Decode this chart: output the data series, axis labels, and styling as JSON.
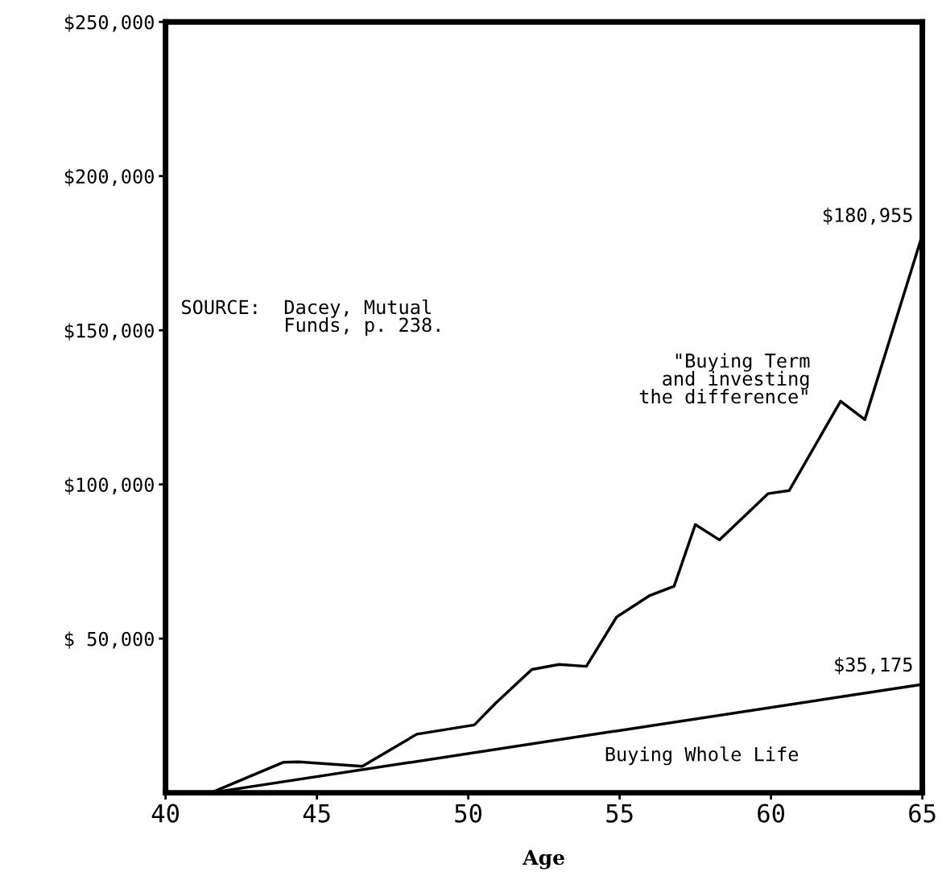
{
  "chart_data": {
    "type": "line",
    "xlabel": "Age",
    "xlim": [
      40,
      65
    ],
    "ylim": [
      0,
      250000
    ],
    "xticks": [
      40,
      45,
      50,
      55,
      60,
      65
    ],
    "yticks": [
      {
        "value": 50000,
        "label": "$ 50,000"
      },
      {
        "value": 100000,
        "label": "$100,000"
      },
      {
        "value": 150000,
        "label": "$150,000"
      },
      {
        "value": 200000,
        "label": "$200,000"
      },
      {
        "value": 250000,
        "label": "$250,000"
      }
    ],
    "grid": false,
    "legend": false,
    "marker": "none",
    "line_style": "solid",
    "series": [
      {
        "name": "\"Buying Term\nand investing\nthe difference\"",
        "color": "#000000",
        "x": [
          40,
          41.5,
          43.9,
          44.4,
          46.5,
          48.3,
          50.2,
          50.9,
          52.1,
          53.0,
          53.9,
          54.9,
          56.0,
          56.8,
          57.5,
          58.3,
          59.9,
          60.6,
          62.3,
          63.1,
          65
        ],
        "values": [
          0,
          0,
          9900,
          10000,
          8600,
          19000,
          22000,
          29000,
          40000,
          41600,
          41000,
          57000,
          64000,
          67000,
          87000,
          82000,
          97000,
          98000,
          127000,
          121000,
          180955
        ],
        "value_labels": [
          null,
          null,
          null,
          null,
          null,
          null,
          null,
          null,
          null,
          null,
          null,
          null,
          null,
          null,
          null,
          null,
          null,
          null,
          null,
          null,
          "$180,955"
        ]
      },
      {
        "name": "Buying Whole Life",
        "color": "#000000",
        "x": [
          40,
          41.5,
          65
        ],
        "values": [
          0,
          0,
          35175
        ],
        "value_labels": [
          null,
          null,
          "$35,175"
        ]
      }
    ],
    "annotations": [
      "SOURCE:  Dacey, Mutual\n         Funds, p. 238."
    ]
  }
}
